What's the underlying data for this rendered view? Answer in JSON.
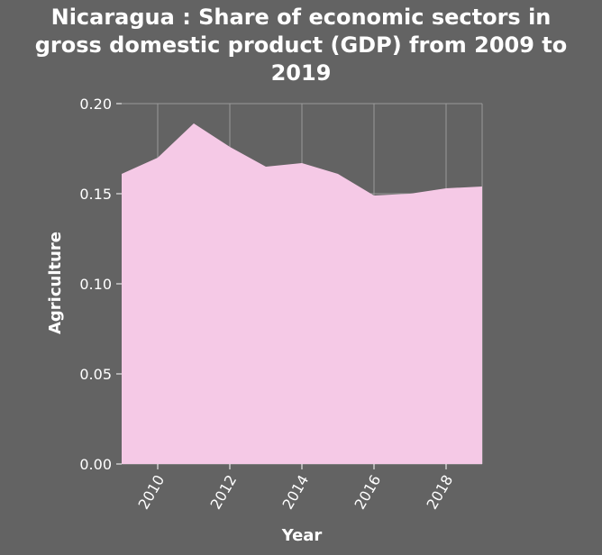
{
  "chart_data": {
    "type": "area",
    "title": "Nicaragua : Share of economic sectors in\ngross domestic product (GDP) from 2009 to\n2019",
    "xlabel": "Year",
    "ylabel": "Agriculture",
    "x": [
      2009,
      2010,
      2011,
      2012,
      2013,
      2014,
      2015,
      2016,
      2017,
      2018,
      2019
    ],
    "values": [
      0.161,
      0.17,
      0.189,
      0.176,
      0.165,
      0.167,
      0.161,
      0.149,
      0.15,
      0.153,
      0.154
    ],
    "xlim": [
      2009,
      2019
    ],
    "ylim": [
      0,
      0.2
    ],
    "x_ticks": [
      "2010",
      "2012",
      "2014",
      "2016",
      "2018"
    ],
    "y_ticks": [
      "0.00",
      "0.05",
      "0.10",
      "0.15",
      "0.20"
    ],
    "grid": true,
    "colors": {
      "background": "#636363",
      "fill": "#f5c9e6",
      "grid": "#9a9a9a"
    }
  }
}
